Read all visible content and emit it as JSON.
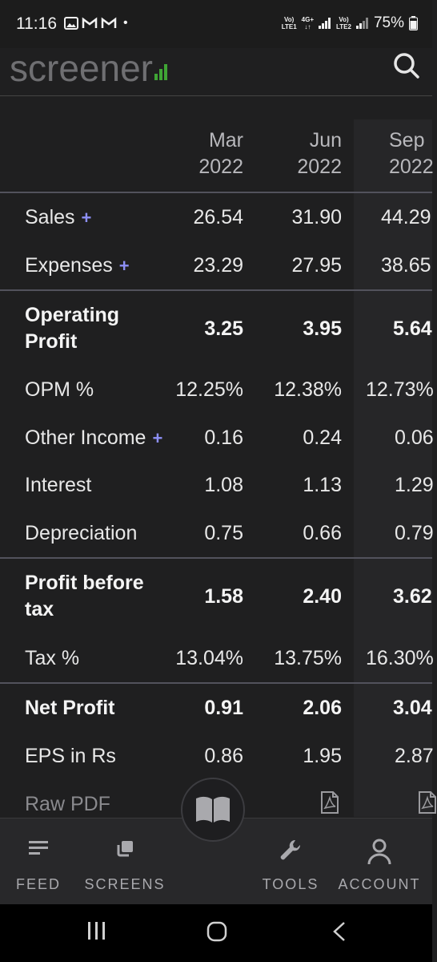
{
  "status_bar": {
    "time": "11:16",
    "dot": "•",
    "net1_top": "Vo)",
    "net1_bottom": "LTE1",
    "net2_top": "4G+",
    "net3_top": "Vo)",
    "net3_bottom": "LTE2",
    "battery": "75%"
  },
  "header": {
    "logo_text": "screener",
    "accent_color": "#3fa535",
    "search_icon": "search-icon"
  },
  "table": {
    "columns": [
      {
        "month": "Mar",
        "year": "2022"
      },
      {
        "month": "Jun",
        "year": "2022"
      },
      {
        "month": "Sep",
        "year": "2022"
      }
    ],
    "rows": [
      {
        "label": "Sales",
        "plus": "+",
        "values": [
          "26.54",
          "31.90",
          "44.29"
        ]
      },
      {
        "label": "Expenses",
        "plus": "+",
        "values": [
          "23.29",
          "27.95",
          "38.65"
        ]
      },
      {
        "label": "Operating Profit",
        "values": [
          "3.25",
          "3.95",
          "5.64"
        ]
      },
      {
        "label": "OPM %",
        "values": [
          "12.25%",
          "12.38%",
          "12.73%"
        ]
      },
      {
        "label": "Other Income",
        "plus": "+",
        "values": [
          "0.16",
          "0.24",
          "0.06"
        ]
      },
      {
        "label": "Interest",
        "values": [
          "1.08",
          "1.13",
          "1.29"
        ]
      },
      {
        "label": "Depreciation",
        "values": [
          "0.75",
          "0.66",
          "0.79"
        ]
      },
      {
        "label": "Profit before tax",
        "values": [
          "1.58",
          "2.40",
          "3.62"
        ]
      },
      {
        "label": "Tax %",
        "values": [
          "13.04%",
          "13.75%",
          "16.30%"
        ]
      },
      {
        "label": "Net Profit",
        "values": [
          "0.91",
          "2.06",
          "3.04"
        ]
      },
      {
        "label": "EPS in Rs",
        "values": [
          "0.86",
          "1.95",
          "2.87"
        ]
      },
      {
        "label": "Raw PDF",
        "values": [
          "pdf-icon",
          "pdf-icon",
          "pdf-icon"
        ]
      }
    ]
  },
  "bottom_nav": {
    "items": [
      {
        "label": "FEED",
        "icon": "feed-icon"
      },
      {
        "label": "SCREENS",
        "icon": "screens-icon"
      },
      {
        "label": "TOOLS",
        "icon": "wrench-icon"
      },
      {
        "label": "ACCOUNT",
        "icon": "person-icon"
      }
    ],
    "fab_icon": "book-icon"
  },
  "system_nav": {
    "recents_icon": "recents-icon",
    "home_icon": "home-icon",
    "back_icon": "back-icon"
  }
}
